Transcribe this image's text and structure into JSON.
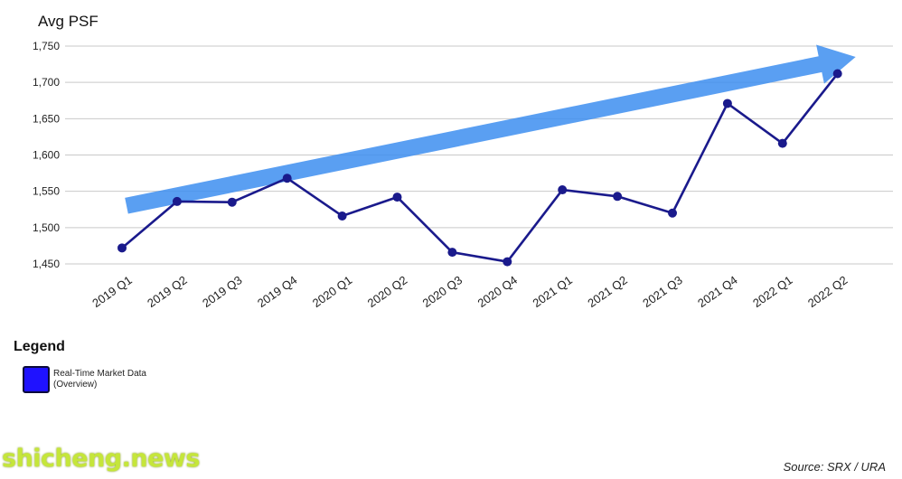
{
  "chart_data": {
    "type": "line",
    "title": "",
    "ylabel": "Avg PSF",
    "xlabel": "",
    "categories": [
      "2019 Q1",
      "2019 Q2",
      "2019 Q3",
      "2019 Q4",
      "2020 Q1",
      "2020 Q2",
      "2020 Q3",
      "2020 Q4",
      "2021 Q1",
      "2021 Q2",
      "2021 Q3",
      "2021 Q4",
      "2022 Q1",
      "2022 Q2"
    ],
    "series": [
      {
        "name": "Real-Time Market Data (Overview)",
        "color": "#1a1a8c",
        "values": [
          1472,
          1536,
          1535,
          1568,
          1516,
          1542,
          1466,
          1453,
          1552,
          1543,
          1520,
          1671,
          1616,
          1712
        ]
      }
    ],
    "yticks": [
      1450,
      1500,
      1550,
      1600,
      1650,
      1700,
      1750
    ],
    "ytick_labels": [
      "1,450",
      "1,500",
      "1,550",
      "1,600",
      "1,650",
      "1,700",
      "1,750"
    ],
    "ylim": [
      1450,
      1750
    ],
    "grid": true,
    "trend_arrow": {
      "color": "#3d8ef0",
      "from": [
        "2019 Q1",
        1530
      ],
      "to": [
        "2022 Q2",
        1735
      ]
    }
  },
  "legend": {
    "title": "Legend",
    "swatch_color": "#1f12ff",
    "label_line1": "Real-Time Market Data",
    "label_line2": "(Overview)"
  },
  "watermark": "shicheng.news",
  "source": "Source: SRX / URA"
}
